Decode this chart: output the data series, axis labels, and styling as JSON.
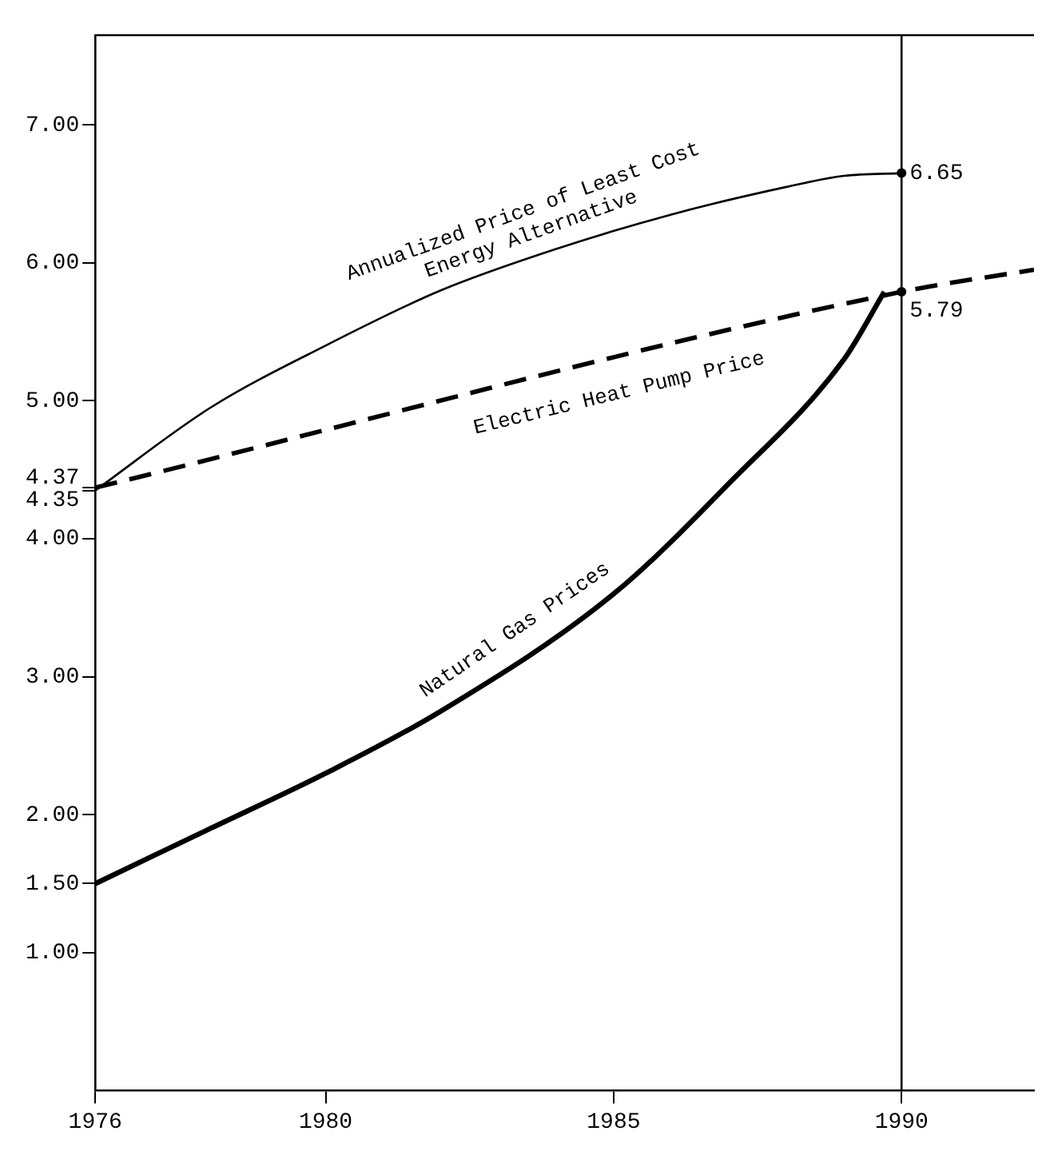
{
  "chart_data": {
    "type": "line",
    "xlim": [
      1976,
      1992.3
    ],
    "xticks": [
      1976,
      1980,
      1985,
      1990
    ],
    "ylim": [
      0,
      7.65
    ],
    "yticks": [
      {
        "value": 1,
        "label": "1.00"
      },
      {
        "value": 1.5,
        "label": "1.50"
      },
      {
        "value": 2,
        "label": "2.00"
      },
      {
        "value": 3,
        "label": "3.00"
      },
      {
        "value": 4,
        "label": "4.00"
      },
      {
        "value": 4.35,
        "label": "4.35"
      },
      {
        "value": 4.37,
        "label": "4.37"
      },
      {
        "value": 5,
        "label": "5.00"
      },
      {
        "value": 6,
        "label": "6.00"
      },
      {
        "value": 7,
        "label": "7.00"
      }
    ],
    "series": [
      {
        "name": "Annualized Price of Least Cost Energy Alternative",
        "color": "#000000",
        "x": [
          1976,
          1978,
          1980,
          1982,
          1984,
          1986,
          1988,
          1989,
          1990
        ],
        "values": [
          4.35,
          4.95,
          5.4,
          5.8,
          6.1,
          6.35,
          6.55,
          6.63,
          6.65
        ]
      },
      {
        "name": "Electric Heat Pump Price",
        "color": "#000000",
        "line_style": "dashed",
        "x": [
          1976,
          1990,
          1992.3
        ],
        "values": [
          4.37,
          5.79,
          5.95
        ]
      },
      {
        "name": "Natural Gas Prices",
        "color": "#000000",
        "x": [
          1976,
          1978,
          1980,
          1982,
          1985,
          1987,
          1989,
          1989.7
        ],
        "values": [
          1.5,
          1.9,
          2.3,
          2.75,
          3.6,
          4.4,
          5.3,
          5.79
        ]
      }
    ],
    "ref_lines": [
      {
        "axis": "x",
        "value": 1990,
        "color": "#000000"
      }
    ],
    "annotations": [
      {
        "text": "6.65",
        "x": 1990,
        "y": 6.65
      },
      {
        "text": "5.79",
        "x": 1990,
        "y": 5.79
      }
    ],
    "grid": false,
    "legend": false,
    "marker": "none"
  }
}
